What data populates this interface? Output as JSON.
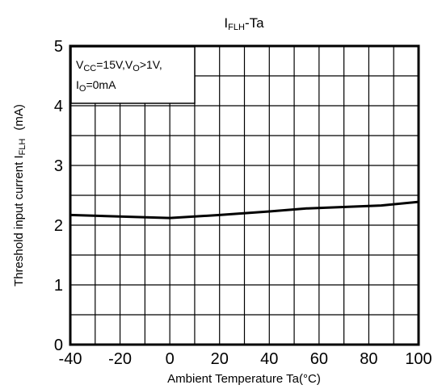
{
  "chart_data": {
    "type": "line",
    "title": {
      "main": "I",
      "sub": "FLH",
      "rest": "-Ta"
    },
    "xlabel": "Ambient Temperature Ta(°C)",
    "ylabel": {
      "main": "Threshold input current   I",
      "sub": "FLH",
      "unit": "(mA)"
    },
    "xlim": [
      -40,
      100
    ],
    "ylim": [
      0,
      5
    ],
    "x_ticks": [
      "-40",
      "-20",
      "0",
      "20",
      "40",
      "60",
      "80",
      "100"
    ],
    "y_ticks": [
      "0",
      "1",
      "2",
      "3",
      "4",
      "5"
    ],
    "grid": true,
    "series": [
      {
        "x": [
          -40,
          0,
          20,
          40,
          55,
          85,
          100
        ],
        "y": [
          2.17,
          2.12,
          2.17,
          2.23,
          2.28,
          2.33,
          2.39
        ]
      }
    ],
    "annotation": {
      "line1": [
        "V",
        "CC",
        "=15V,V",
        "O",
        ">1V,"
      ],
      "line2": [
        "I",
        "O",
        "=0mA"
      ]
    }
  }
}
